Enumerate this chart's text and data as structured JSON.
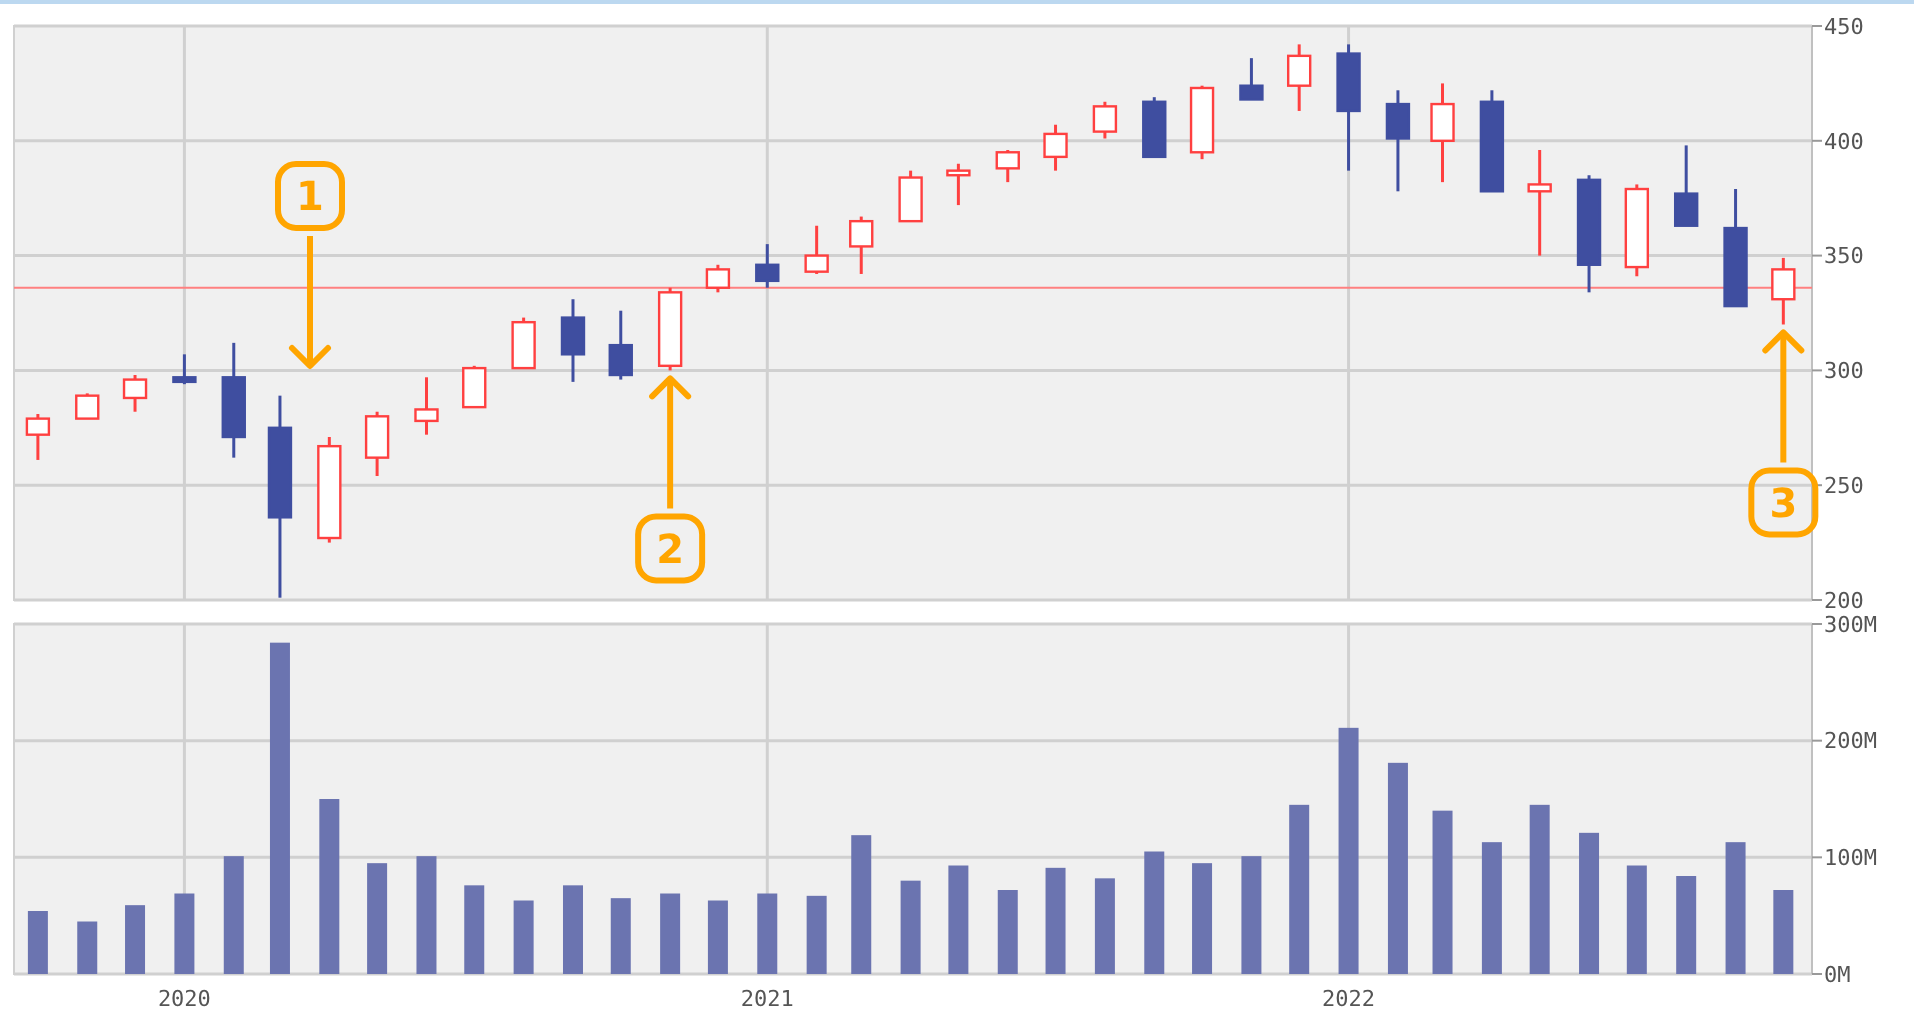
{
  "chart_data": [
    {
      "type": "candlestick",
      "x": [
        "2019-10",
        "2019-11",
        "2019-12",
        "2020-01",
        "2020-02",
        "2020-03",
        "2020-04",
        "2020-05",
        "2020-06",
        "2020-07",
        "2020-08",
        "2020-09",
        "2020-10",
        "2020-11",
        "2020-12",
        "2021-01",
        "2021-02",
        "2021-03",
        "2021-04",
        "2021-05",
        "2021-06",
        "2021-07",
        "2021-08",
        "2021-09",
        "2021-10",
        "2021-11",
        "2021-12",
        "2022-01",
        "2022-02",
        "2022-03",
        "2022-04",
        "2022-05",
        "2022-06",
        "2022-07",
        "2022-08",
        "2022-09",
        "2022-10"
      ],
      "ohlc": [
        [
          272,
          281,
          261,
          279
        ],
        [
          279,
          290,
          279,
          289
        ],
        [
          288,
          298,
          282,
          296
        ],
        [
          297,
          307,
          294,
          295
        ],
        [
          297,
          312,
          262,
          271
        ],
        [
          275,
          289,
          201,
          236
        ],
        [
          227,
          271,
          225,
          267
        ],
        [
          262,
          282,
          254,
          280
        ],
        [
          278,
          297,
          272,
          283
        ],
        [
          284,
          302,
          284,
          301
        ],
        [
          301,
          323,
          301,
          321
        ],
        [
          323,
          331,
          295,
          307
        ],
        [
          311,
          326,
          296,
          298
        ],
        [
          302,
          336,
          300,
          334
        ],
        [
          336,
          346,
          334,
          344
        ],
        [
          346,
          355,
          336,
          339
        ],
        [
          343,
          363,
          342,
          350
        ],
        [
          354,
          367,
          342,
          365
        ],
        [
          365,
          387,
          365,
          384
        ],
        [
          385,
          390,
          372,
          387
        ],
        [
          388,
          396,
          382,
          395
        ],
        [
          393,
          407,
          387,
          403
        ],
        [
          404,
          417,
          401,
          415
        ],
        [
          417,
          419,
          393,
          393
        ],
        [
          395,
          424,
          392,
          423
        ],
        [
          424,
          436,
          418,
          418
        ],
        [
          424,
          442,
          413,
          437
        ],
        [
          438,
          442,
          387,
          413
        ],
        [
          416,
          422,
          378,
          401
        ],
        [
          400,
          425,
          382,
          416
        ],
        [
          417,
          422,
          378,
          378
        ],
        [
          378,
          396,
          350,
          381
        ],
        [
          383,
          385,
          334,
          346
        ],
        [
          345,
          381,
          341,
          379
        ],
        [
          377,
          398,
          363,
          363
        ],
        [
          362,
          379,
          328,
          328
        ],
        [
          331,
          349,
          320,
          344
        ]
      ],
      "xlim": [
        "2019-09-16",
        "2022-10-19"
      ],
      "xticks": [
        {
          "value": "2020-01-01",
          "label": null
        },
        {
          "value": "2021-01-01",
          "label": null
        },
        {
          "value": "2022-01-01",
          "label": null
        }
      ],
      "ylim": [
        200,
        450
      ],
      "yticks": [
        200,
        250,
        300,
        350,
        400,
        450
      ],
      "grid": true,
      "tick_labels": "y",
      "ref_lines": [
        {
          "axis": "y",
          "value": 336,
          "color": "#ff8080"
        }
      ],
      "annotations": [
        "1",
        {
          "text": "2",
          "x": "2020-11",
          "y": 300
        },
        {
          "text": "3",
          "x": "2022-10",
          "y": 320
        }
      ]
    },
    {
      "type": "bar",
      "x": [
        "2019-10",
        "2019-11",
        "2019-12",
        "2020-01",
        "2020-02",
        "2020-03",
        "2020-04",
        "2020-05",
        "2020-06",
        "2020-07",
        "2020-08",
        "2020-09",
        "2020-10",
        "2020-11",
        "2020-12",
        "2021-01",
        "2021-02",
        "2021-03",
        "2021-04",
        "2021-05",
        "2021-06",
        "2021-07",
        "2021-08",
        "2021-09",
        "2021-10",
        "2021-11",
        "2021-12",
        "2022-01",
        "2022-02",
        "2022-03",
        "2022-04",
        "2022-05",
        "2022-06",
        "2022-07",
        "2022-08",
        "2022-09",
        "2022-10"
      ],
      "values": [
        54,
        45,
        59,
        69,
        101,
        284,
        150,
        95,
        101,
        76,
        63,
        76,
        65,
        69,
        63,
        69,
        67,
        119,
        80,
        93,
        72,
        91,
        82,
        105,
        95,
        101,
        145,
        211,
        181,
        140,
        113,
        145,
        121,
        93,
        84,
        113,
        72
      ],
      "color": "#6b74b0",
      "xlim": [
        "2019-09-16",
        "2022-10-19"
      ],
      "xticks": [
        {
          "value": "2020-01-01",
          "label": "2020"
        },
        {
          "value": "2021-01-01",
          "label": "2021"
        },
        {
          "value": "2022-01-01",
          "label": "2022"
        }
      ],
      "ylim": [
        0,
        300
      ],
      "yticks": [
        {
          "value": 0,
          "label": "0M"
        },
        {
          "value": 100,
          "label": "100M"
        },
        {
          "value": 200,
          "label": "200M"
        },
        {
          "value": 300,
          "label": "300M"
        }
      ],
      "grid": true
    }
  ]
}
